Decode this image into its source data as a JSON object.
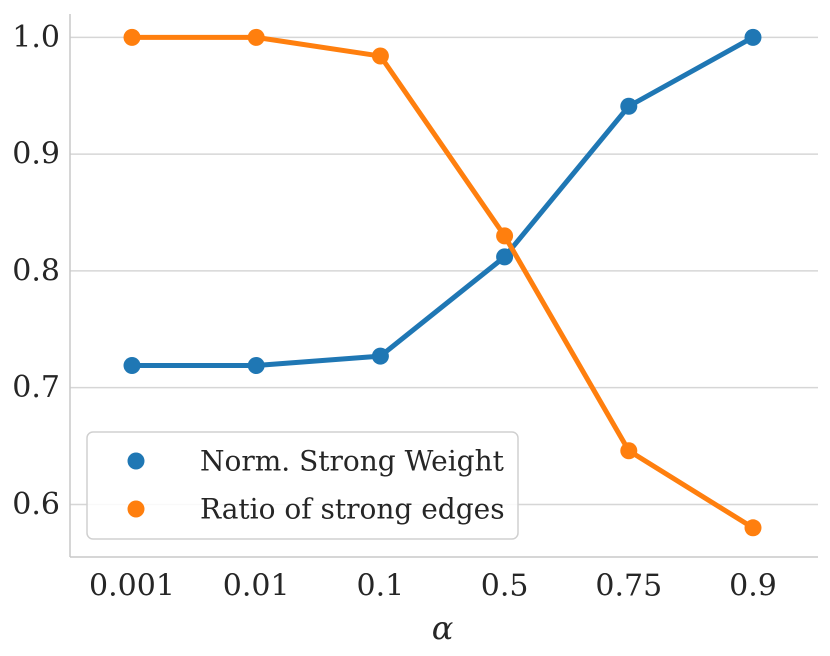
{
  "chart_data": {
    "type": "line",
    "title": "",
    "xlabel": "α",
    "ylabel": "",
    "categories": [
      "0.001",
      "0.01",
      "0.1",
      "0.5",
      "0.75",
      "0.9"
    ],
    "ylim": [
      0.555,
      1.02
    ],
    "yticks": [
      0.6,
      0.7,
      0.8,
      0.9,
      1.0
    ],
    "ytick_labels": [
      "0.6",
      "0.7",
      "0.8",
      "0.9",
      "1.0"
    ],
    "grid": "horizontal",
    "legend_position": "lower-left",
    "series": [
      {
        "name": "Norm. Strong Weight",
        "color": "#1f77b4",
        "values": [
          0.719,
          0.719,
          0.727,
          0.812,
          0.941,
          1.0
        ]
      },
      {
        "name": "Ratio of strong edges",
        "color": "#ff7f0e",
        "values": [
          1.0,
          1.0,
          0.984,
          0.83,
          0.646,
          0.58
        ]
      }
    ]
  }
}
